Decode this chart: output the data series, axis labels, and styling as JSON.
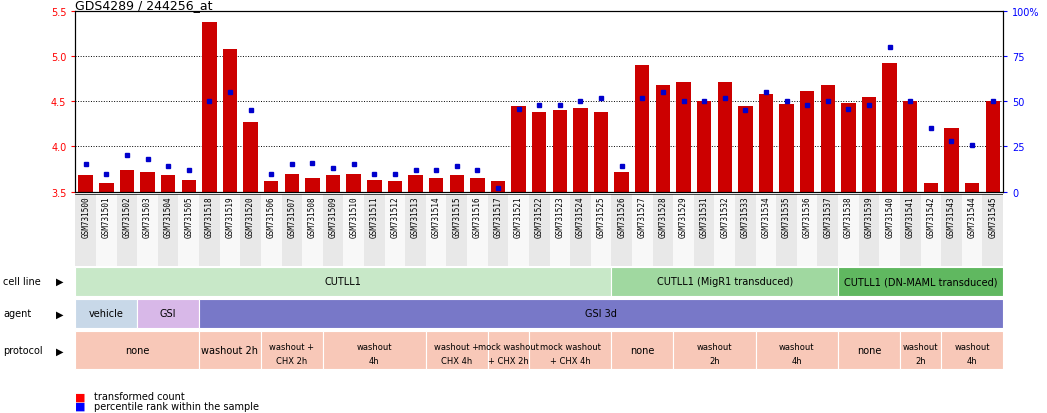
{
  "title": "GDS4289 / 244256_at",
  "samples": [
    "GSM731500",
    "GSM731501",
    "GSM731502",
    "GSM731503",
    "GSM731504",
    "GSM731505",
    "GSM731518",
    "GSM731519",
    "GSM731520",
    "GSM731506",
    "GSM731507",
    "GSM731508",
    "GSM731509",
    "GSM731510",
    "GSM731511",
    "GSM731512",
    "GSM731513",
    "GSM731514",
    "GSM731515",
    "GSM731516",
    "GSM731517",
    "GSM731521",
    "GSM731522",
    "GSM731523",
    "GSM731524",
    "GSM731525",
    "GSM731526",
    "GSM731527",
    "GSM731528",
    "GSM731529",
    "GSM731531",
    "GSM731532",
    "GSM731533",
    "GSM731534",
    "GSM731535",
    "GSM731536",
    "GSM731537",
    "GSM731538",
    "GSM731539",
    "GSM731540",
    "GSM731541",
    "GSM731542",
    "GSM731543",
    "GSM731544",
    "GSM731545"
  ],
  "red_values": [
    3.68,
    3.6,
    3.74,
    3.72,
    3.68,
    3.63,
    5.38,
    5.08,
    4.27,
    3.62,
    3.7,
    3.65,
    3.68,
    3.7,
    3.63,
    3.62,
    3.68,
    3.65,
    3.68,
    3.65,
    3.62,
    4.45,
    4.38,
    4.4,
    4.43,
    4.38,
    3.72,
    4.9,
    4.68,
    4.72,
    4.5,
    4.72,
    4.45,
    4.58,
    4.47,
    4.62,
    4.68,
    4.48,
    4.55,
    4.93,
    4.5,
    3.6,
    4.2,
    3.6,
    4.5
  ],
  "blue_values": [
    15,
    10,
    20,
    18,
    14,
    12,
    50,
    55,
    45,
    10,
    15,
    16,
    13,
    15,
    10,
    10,
    12,
    12,
    14,
    12,
    2,
    46,
    48,
    48,
    50,
    52,
    14,
    52,
    55,
    50,
    50,
    52,
    45,
    55,
    50,
    48,
    50,
    46,
    48,
    80,
    50,
    35,
    28,
    26,
    50
  ],
  "ylim_left": [
    3.5,
    5.5
  ],
  "ylim_right": [
    0,
    100
  ],
  "yticks_left": [
    3.5,
    4.0,
    4.5,
    5.0,
    5.5
  ],
  "yticks_right": [
    0,
    25,
    50,
    75,
    100
  ],
  "cell_line_groups": [
    {
      "label": "CUTLL1",
      "start": 0,
      "end": 26,
      "color": "#c8e8c8"
    },
    {
      "label": "CUTLL1 (MigR1 transduced)",
      "start": 26,
      "end": 37,
      "color": "#a0d8a0"
    },
    {
      "label": "CUTLL1 (DN-MAML transduced)",
      "start": 37,
      "end": 45,
      "color": "#60b860"
    }
  ],
  "agent_groups": [
    {
      "label": "vehicle",
      "start": 0,
      "end": 3,
      "color": "#c8d8e8"
    },
    {
      "label": "GSI",
      "start": 3,
      "end": 6,
      "color": "#d8b8e8"
    },
    {
      "label": "GSI 3d",
      "start": 6,
      "end": 45,
      "color": "#7878c8"
    }
  ],
  "protocol_groups": [
    {
      "label": "none",
      "start": 0,
      "end": 6,
      "color": "#f8c8b8"
    },
    {
      "label": "washout 2h",
      "start": 6,
      "end": 9,
      "color": "#f8c8b8"
    },
    {
      "label": "washout +\nCHX 2h",
      "start": 9,
      "end": 12,
      "color": "#f8c8b8"
    },
    {
      "label": "washout\n4h",
      "start": 12,
      "end": 17,
      "color": "#f8c8b8"
    },
    {
      "label": "washout +\nCHX 4h",
      "start": 17,
      "end": 20,
      "color": "#f8c8b8"
    },
    {
      "label": "mock washout\n+ CHX 2h",
      "start": 20,
      "end": 22,
      "color": "#f8c8b8"
    },
    {
      "label": "mock washout\n+ CHX 4h",
      "start": 22,
      "end": 26,
      "color": "#f8c8b8"
    },
    {
      "label": "none",
      "start": 26,
      "end": 29,
      "color": "#f8c8b8"
    },
    {
      "label": "washout\n2h",
      "start": 29,
      "end": 33,
      "color": "#f8c8b8"
    },
    {
      "label": "washout\n4h",
      "start": 33,
      "end": 37,
      "color": "#f8c8b8"
    },
    {
      "label": "none",
      "start": 37,
      "end": 40,
      "color": "#f8c8b8"
    },
    {
      "label": "washout\n2h",
      "start": 40,
      "end": 42,
      "color": "#f8c8b8"
    },
    {
      "label": "washout\n4h",
      "start": 42,
      "end": 45,
      "color": "#f8c8b8"
    }
  ],
  "bar_color": "#cc0000",
  "dot_color": "#0000cc",
  "background_color": "#ffffff"
}
